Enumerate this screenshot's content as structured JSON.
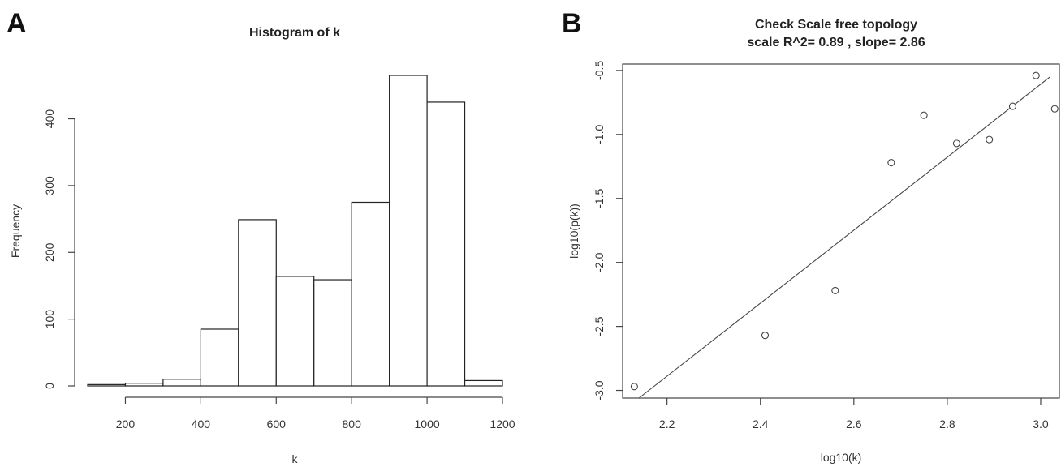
{
  "panels": {
    "a_letter": "A",
    "b_letter": "B"
  },
  "chart_data": [
    {
      "type": "bar",
      "title": "Histogram of k",
      "xlabel": "k",
      "ylabel": "Frequency",
      "bins": [
        {
          "x0": 100,
          "x1": 200,
          "count": 2
        },
        {
          "x0": 200,
          "x1": 300,
          "count": 4
        },
        {
          "x0": 300,
          "x1": 400,
          "count": 10
        },
        {
          "x0": 400,
          "x1": 500,
          "count": 85
        },
        {
          "x0": 500,
          "x1": 600,
          "count": 249
        },
        {
          "x0": 600,
          "x1": 700,
          "count": 164
        },
        {
          "x0": 700,
          "x1": 800,
          "count": 159
        },
        {
          "x0": 800,
          "x1": 900,
          "count": 275
        },
        {
          "x0": 900,
          "x1": 1000,
          "count": 465
        },
        {
          "x0": 1000,
          "x1": 1100,
          "count": 425
        },
        {
          "x0": 1100,
          "x1": 1200,
          "count": 8
        }
      ],
      "xlim": [
        100,
        1200
      ],
      "ylim": [
        0,
        465
      ],
      "xticks": [
        200,
        400,
        600,
        800,
        1000,
        1200
      ],
      "yticks": [
        0,
        100,
        200,
        300,
        400
      ],
      "grid": false
    },
    {
      "type": "scatter",
      "title": "Check Scale free topology",
      "subtitle": "scale R^2= 0.89 , slope= 2.86",
      "xlabel": "log10(k)",
      "ylabel": "log10(p(k))",
      "x": [
        2.13,
        2.41,
        2.56,
        2.68,
        2.75,
        2.82,
        2.89,
        2.94,
        2.99,
        3.03
      ],
      "y": [
        -2.97,
        -2.57,
        -2.22,
        -1.22,
        -0.85,
        -1.07,
        -1.04,
        -0.78,
        -0.54,
        -0.8
      ],
      "fit_line": {
        "x": [
          2.14,
          3.02
        ],
        "y": [
          -3.06,
          -0.55
        ]
      },
      "xlim": [
        2.105,
        3.04
      ],
      "ylim": [
        -3.06,
        -0.45
      ],
      "xticks": [
        2.2,
        2.4,
        2.6,
        2.8,
        3.0
      ],
      "xtick_labels": [
        "2.2",
        "2.4",
        "2.6",
        "2.8",
        "3.0"
      ],
      "yticks": [
        -3.0,
        -2.5,
        -2.0,
        -1.5,
        -1.0,
        -0.5
      ],
      "ytick_labels": [
        "-3.0",
        "-2.5",
        "-2.0",
        "-1.5",
        "-1.0",
        "-0.5"
      ],
      "grid": false
    }
  ]
}
